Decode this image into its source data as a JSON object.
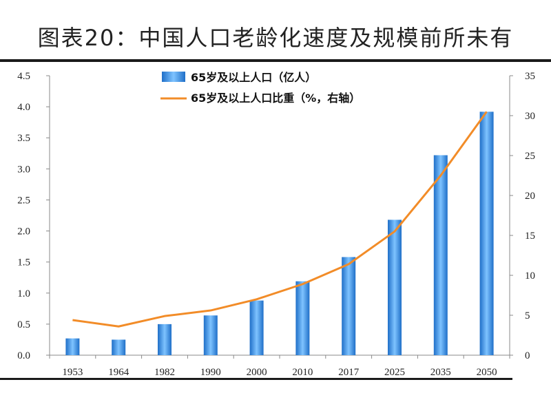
{
  "title": "图表20：中国人口老龄化速度及规模前所未有",
  "chart_data": {
    "type": "bar",
    "categories": [
      "1953",
      "1964",
      "1982",
      "1990",
      "2000",
      "2010",
      "2017",
      "2025",
      "2035",
      "2050"
    ],
    "series": [
      {
        "name": "65岁及以上人口（亿人）",
        "type": "bar",
        "axis": "left",
        "color": "#2a7fd6",
        "values": [
          0.27,
          0.25,
          0.5,
          0.64,
          0.88,
          1.19,
          1.58,
          2.18,
          3.22,
          3.92
        ]
      },
      {
        "name": "65岁及以上人口比重（%，右轴）",
        "type": "line",
        "axis": "right",
        "color": "#f28c28",
        "values": [
          4.4,
          3.6,
          4.9,
          5.6,
          7.0,
          8.9,
          11.4,
          15.5,
          22.5,
          30.5
        ]
      }
    ],
    "y_left": {
      "min": 0,
      "max": 4.5,
      "ticks": [
        "0.0",
        "0.5",
        "1.0",
        "1.5",
        "2.0",
        "2.5",
        "3.0",
        "3.5",
        "4.0",
        "4.5"
      ]
    },
    "y_right": {
      "min": 0,
      "max": 35,
      "ticks": [
        "0",
        "5",
        "10",
        "15",
        "20",
        "25",
        "30",
        "35"
      ]
    },
    "grid": false,
    "legend_position": "top-center"
  }
}
